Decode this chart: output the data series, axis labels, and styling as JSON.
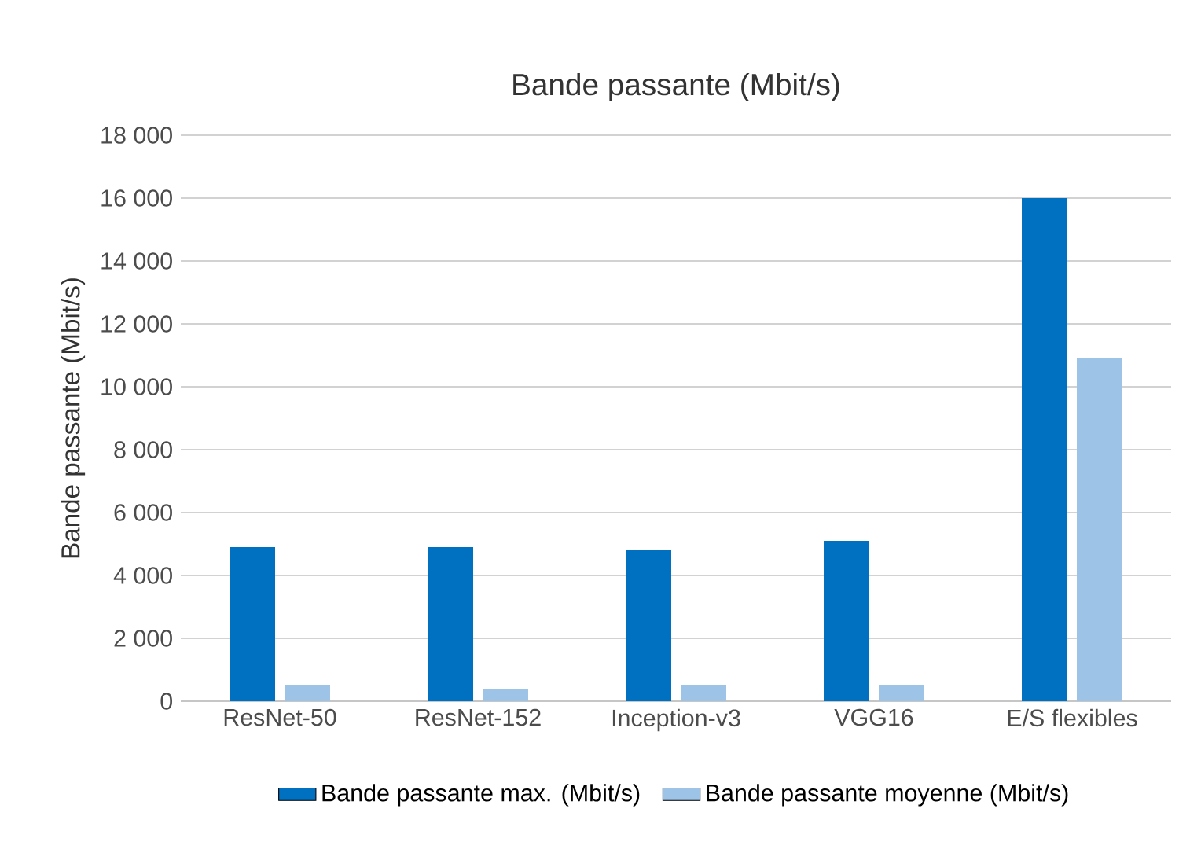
{
  "chart_data": {
    "type": "bar",
    "title": "Bande passante (Mbit/s)",
    "ylabel": "Bande passante (Mbit/s)",
    "categories": [
      "ResNet-50",
      "ResNet-152",
      "Inception-v3",
      "VGG16",
      "E/S flexibles"
    ],
    "series": [
      {
        "name": "Bande passante max. (Mbit/s)",
        "color": "#0070c0",
        "values": [
          4900,
          4900,
          4800,
          5100,
          16000
        ]
      },
      {
        "name": "Bande passante moyenne (Mbit/s)",
        "color": "#9dc3e6",
        "values": [
          500,
          400,
          500,
          500,
          10900
        ]
      }
    ],
    "ylim": [
      0,
      18000
    ],
    "yticks": [
      {
        "value": 0,
        "label": "0"
      },
      {
        "value": 2000,
        "label": "2 000"
      },
      {
        "value": 4000,
        "label": "4 000"
      },
      {
        "value": 6000,
        "label": "6 000"
      },
      {
        "value": 8000,
        "label": "8 000"
      },
      {
        "value": 10000,
        "label": "10 000"
      },
      {
        "value": 12000,
        "label": "12 000"
      },
      {
        "value": 14000,
        "label": "14 000"
      },
      {
        "value": 16000,
        "label": "16 000"
      },
      {
        "value": 18000,
        "label": "18 000"
      }
    ],
    "grid": "y",
    "legend": "bottom"
  }
}
